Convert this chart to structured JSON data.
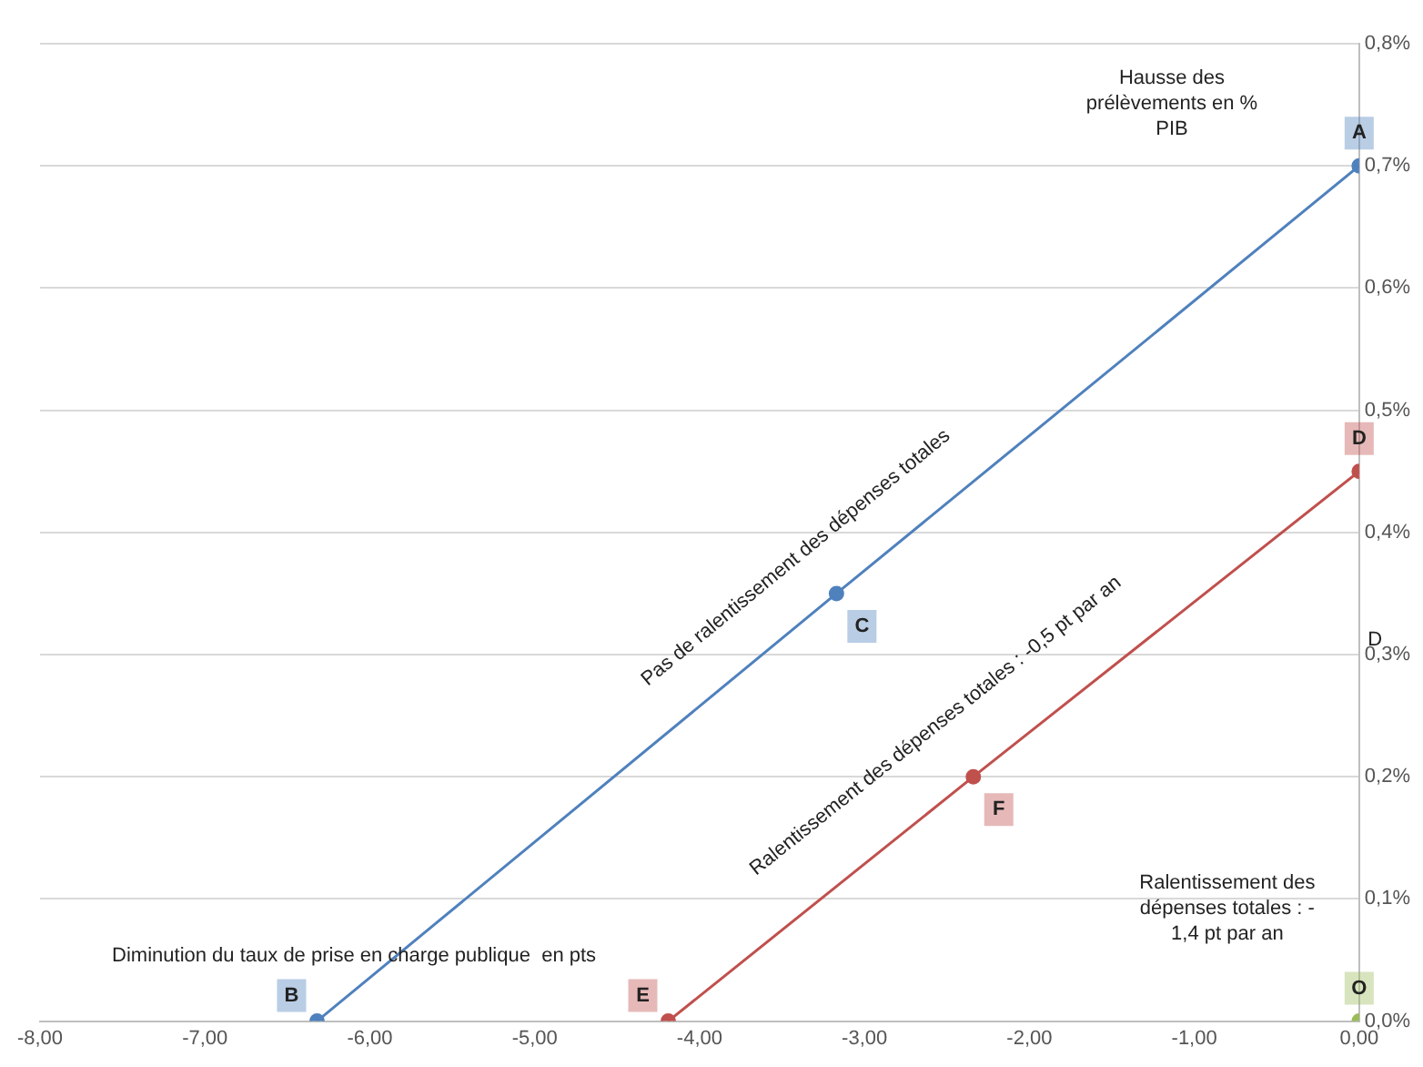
{
  "chart_data": {
    "type": "line",
    "series": [
      {
        "color": "#4f81bd",
        "x": [
          -6.32,
          -3.17,
          0
        ],
        "values": [
          0,
          0.35,
          0.7
        ]
      },
      {
        "color": "#c0504d",
        "x": [
          -4.19,
          -2.34,
          0
        ],
        "values": [
          0,
          0.2,
          0.45
        ]
      },
      {
        "type": "scatter",
        "color": "#9bbb59",
        "x": [
          0
        ],
        "values": [
          0
        ]
      }
    ],
    "xlim": [
      -8,
      0
    ],
    "xticks": [
      {
        "value": -8,
        "label": "-8,00"
      },
      {
        "value": -7,
        "label": "-7,00"
      },
      {
        "value": -6,
        "label": "-6,00"
      },
      {
        "value": -5,
        "label": "-5,00"
      },
      {
        "value": -4,
        "label": "-4,00"
      },
      {
        "value": -3,
        "label": "-3,00"
      },
      {
        "value": -2,
        "label": "-2,00"
      },
      {
        "value": -1,
        "label": "-1,00"
      },
      {
        "value": 0,
        "label": "0,00"
      }
    ],
    "ylim": [
      0,
      0.8
    ],
    "yticks": [
      {
        "value": 0,
        "label": "0,0%"
      },
      {
        "value": 0.1,
        "label": "0,1%"
      },
      {
        "value": 0.2,
        "label": "0,2%"
      },
      {
        "value": 0.3,
        "label": "0,3%"
      },
      {
        "value": 0.4,
        "label": "0,4%"
      },
      {
        "value": 0.5,
        "label": "0,5%"
      },
      {
        "value": 0.6,
        "label": "0,6%"
      },
      {
        "value": 0.7,
        "label": "0,7%"
      },
      {
        "value": 0.8,
        "label": "0,8%"
      }
    ],
    "grid": "y",
    "legend": false,
    "marker": "circle",
    "annotations": [
      {
        "text": "A",
        "x": 0,
        "y": 0.7
      },
      {
        "text": "B",
        "x": -6.32,
        "y": 0
      },
      {
        "text": "C",
        "x": -3.17,
        "y": 0.35
      },
      {
        "text": "D",
        "x": 0,
        "y": 0.45
      },
      {
        "text": "E",
        "x": -4.19,
        "y": 0
      },
      {
        "text": "F",
        "x": -2.34,
        "y": 0.2
      },
      {
        "text": "O",
        "x": 0,
        "y": 0
      },
      "D",
      "Hausse des prélèvements en % PIB",
      "Pas de ralentissement des dépenses totales",
      "Ralentissement des dépenses totales : -0,5 pt par an",
      "Ralentissement des dépenses totales : - 1,4 pt par an",
      "Diminution du taux de prise en charge publique  en pts"
    ]
  }
}
